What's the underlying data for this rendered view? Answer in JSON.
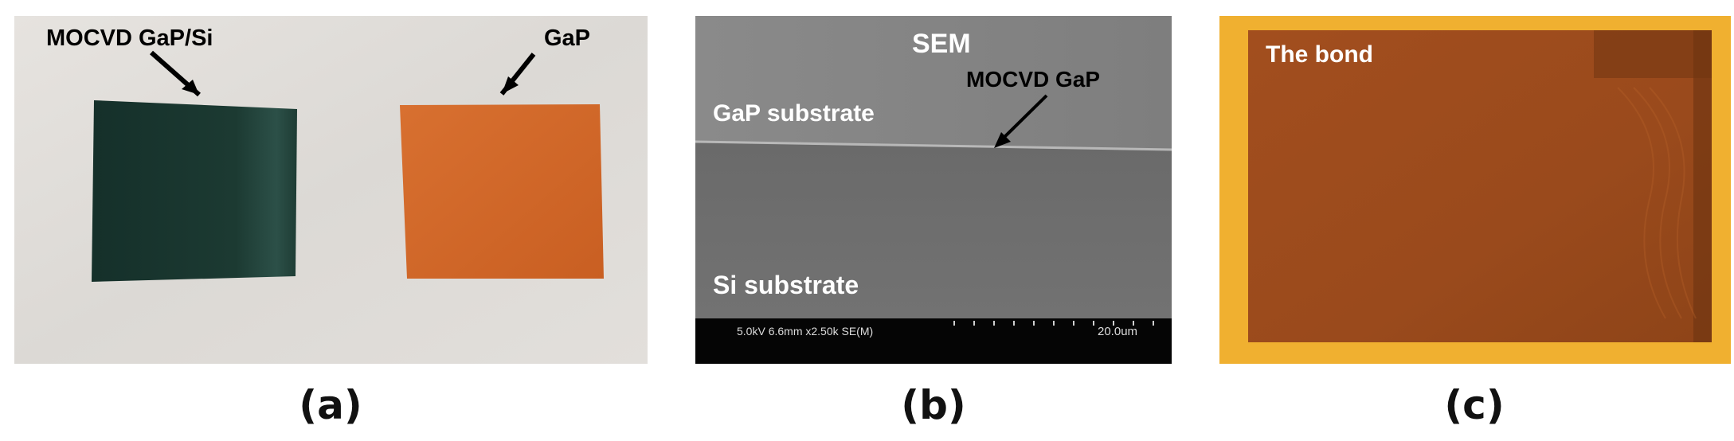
{
  "panel_a": {
    "label_left": "MOCVD GaP/Si",
    "label_right": "GaP",
    "caption": "(a)"
  },
  "panel_b": {
    "title": "SEM",
    "label_top": "GaP substrate",
    "label_film": "MOCVD GaP",
    "label_bottom": "Si substrate",
    "info_bar": "5.0kV 6.6mm x2.50k SE(M)",
    "scale": "20.0um",
    "caption": "(b)"
  },
  "panel_c": {
    "label": "The bond",
    "caption": "(c)"
  },
  "colors": {
    "dark_wafer": "#1c3a32",
    "gap_wafer": "#d2692a",
    "bond_border": "#f0b030",
    "bond_sample": "#9a4a1c"
  }
}
